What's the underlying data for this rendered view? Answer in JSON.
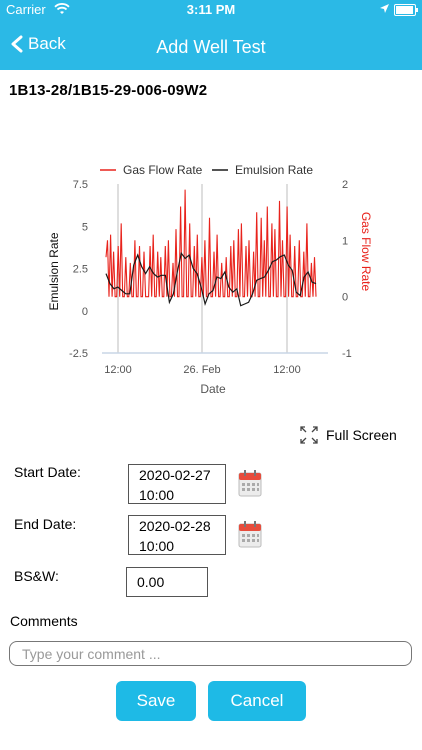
{
  "status_bar": {
    "carrier": "Carrier",
    "time": "3:11 PM"
  },
  "nav": {
    "back_label": "Back",
    "title": "Add Well Test"
  },
  "well_id": "1B13-28/1B15-29-006-09W2",
  "chart_data": {
    "type": "line",
    "xlabel": "Date",
    "ylabel_left": "Emulsion Rate",
    "ylabel_right": "Gas Flow Rate",
    "y_left_lim": [
      -2.5,
      7.5
    ],
    "y_left_ticks": [
      "7.5",
      "5",
      "2.5",
      "0",
      "-2.5"
    ],
    "y_right_lim": [
      -1,
      2
    ],
    "y_right_ticks": [
      "2",
      "1",
      "0",
      "-1"
    ],
    "x_ticks": [
      "12:00",
      "26. Feb",
      "12:00"
    ],
    "legend": [
      "Gas Flow Rate",
      "Emulsion Rate"
    ],
    "grid": "vertical",
    "legend_position": "top-center",
    "series": [
      {
        "name": "Gas Flow Rate",
        "color": "#e8231c",
        "axis": "right",
        "values": [
          0.7,
          1.0,
          0.0,
          1.1,
          0.0,
          0.8,
          0.0,
          0.0,
          0.9,
          0.0,
          1.3,
          0.0,
          0.0,
          0.7,
          0.0,
          0.0,
          0.6,
          0.0,
          0.0,
          1.0,
          0.0,
          0.0,
          0.9,
          0.0,
          0.0,
          0.8,
          0.0,
          0.0,
          0.0,
          0.9,
          0.0,
          1.1,
          0.0,
          0.0,
          0.8,
          0.0,
          0.7,
          0.0,
          0.0,
          0.9,
          0.0,
          1.0,
          0.0,
          0.0,
          0.6,
          0.0,
          1.2,
          0.0,
          0.0,
          1.6,
          0.0,
          0.0,
          1.9,
          0.0,
          0.0,
          1.3,
          0.0,
          0.0,
          0.9,
          0.0,
          1.1,
          0.0,
          0.0,
          0.7,
          0.0,
          1.0,
          0.0,
          0.0,
          1.4,
          0.0,
          0.0,
          0.8,
          0.0,
          1.1,
          0.0,
          0.0,
          0.6,
          0.0,
          0.0,
          0.7,
          0.0,
          0.0,
          0.9,
          0.0,
          1.0,
          0.0,
          0.0,
          1.2,
          0.0,
          1.3,
          0.0,
          0.0,
          0.9,
          0.0,
          1.0,
          0.0,
          0.0,
          0.8,
          0.0,
          1.5,
          0.0,
          0.0,
          1.4,
          0.0,
          1.0,
          0.0,
          1.6,
          0.0,
          0.0,
          1.3,
          0.0,
          1.2,
          0.0,
          0.0,
          1.7,
          0.0,
          1.0,
          0.0,
          0.0,
          1.6,
          0.0,
          1.1,
          0.0,
          0.0,
          0.9,
          0.0,
          0.0,
          1.0,
          0.0,
          0.0,
          0.8,
          0.0,
          1.3,
          0.0,
          0.0,
          0.6,
          0.0,
          0.7,
          0.0
        ]
      },
      {
        "name": "Emulsion Rate",
        "color": "#1a1a1a",
        "axis": "left",
        "values": [
          2.2,
          1.6,
          1.3,
          1.4,
          1.2,
          1.0,
          1.0,
          2.7,
          3.3,
          2.6,
          2.2,
          2.6,
          2.2,
          2.0,
          2.1,
          2.1,
          0.5,
          1.0,
          2.3,
          3.4,
          3.1,
          3.3,
          2.5,
          2.2,
          1.4,
          0.4,
          1.0,
          1.2,
          2.0,
          1.9,
          2.3,
          1.4,
          1.1,
          1.3,
          0.3,
          0.4,
          0.5,
          1.0,
          1.8,
          1.9,
          2.0,
          2.4,
          2.9,
          3.0,
          3.2,
          3.3,
          2.7,
          2.4,
          1.1,
          0.9,
          2.0,
          2.3,
          1.7,
          1.6
        ]
      }
    ]
  },
  "full_screen_label": "Full Screen",
  "form": {
    "start_date_label": "Start Date:",
    "start_date_line1": "2020-02-27",
    "start_date_line2": "10:00",
    "end_date_label": "End Date:",
    "end_date_line1": "2020-02-28",
    "end_date_line2": "10:00",
    "bsw_label": "BS&W:",
    "bsw_value": "0.00",
    "comments_label": "Comments",
    "comments_placeholder": "Type your comment ..."
  },
  "buttons": {
    "save": "Save",
    "cancel": "Cancel"
  },
  "colors": {
    "accent": "#2bb9e6",
    "button": "#1ebae6",
    "calendar_red": "#e74c3c"
  }
}
